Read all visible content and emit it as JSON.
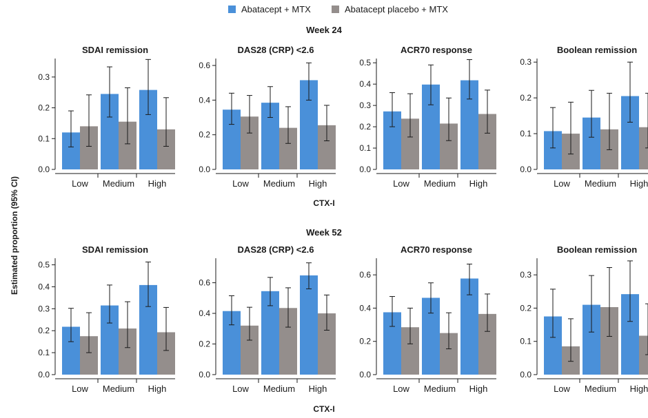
{
  "legend": [
    {
      "label": "Abatacept + MTX",
      "color": "#4a90d9"
    },
    {
      "label": "Abatacept placebo + MTX",
      "color": "#948e8c"
    }
  ],
  "y_axis_label": "Estimated proportion (95% CI)",
  "x_axis_label": "CTX-I",
  "weeks": [
    "Week 24",
    "Week 52"
  ],
  "colors": {
    "abatacept": "#4a90d9",
    "placebo": "#948e8c",
    "axis": "#1a1a1a"
  },
  "chart_data": [
    {
      "type": "bar",
      "panel": "Week 24",
      "title": "SDAI remission",
      "categories": [
        "Low",
        "Medium",
        "High"
      ],
      "ylim": [
        0,
        0.36
      ],
      "yticks": [
        0.0,
        0.1,
        0.2,
        0.3
      ],
      "tick_decimals": 1,
      "series": [
        {
          "name": "Abatacept + MTX",
          "values": [
            0.12,
            0.245,
            0.258
          ],
          "ci_low": [
            0.073,
            0.17,
            0.178
          ],
          "ci_high": [
            0.19,
            0.333,
            0.357
          ]
        },
        {
          "name": "Abatacept placebo + MTX",
          "values": [
            0.14,
            0.155,
            0.13
          ],
          "ci_low": [
            0.075,
            0.083,
            0.075
          ],
          "ci_high": [
            0.242,
            0.265,
            0.233
          ]
        }
      ]
    },
    {
      "type": "bar",
      "panel": "Week 24",
      "title": "DAS28 (CRP) <2.6",
      "categories": [
        "Low",
        "Medium",
        "High"
      ],
      "ylim": [
        0,
        0.64
      ],
      "yticks": [
        0.0,
        0.2,
        0.4,
        0.6
      ],
      "tick_decimals": 1,
      "series": [
        {
          "name": "Abatacept + MTX",
          "values": [
            0.345,
            0.385,
            0.515
          ],
          "ci_low": [
            0.26,
            0.3,
            0.4
          ],
          "ci_high": [
            0.44,
            0.478,
            0.615
          ]
        },
        {
          "name": "Abatacept placebo + MTX",
          "values": [
            0.305,
            0.24,
            0.255
          ],
          "ci_low": [
            0.21,
            0.15,
            0.165
          ],
          "ci_high": [
            0.427,
            0.362,
            0.37
          ]
        }
      ]
    },
    {
      "type": "bar",
      "panel": "Week 24",
      "title": "ACR70 response",
      "categories": [
        "Low",
        "Medium",
        "High"
      ],
      "ylim": [
        0,
        0.52
      ],
      "yticks": [
        0.0,
        0.1,
        0.2,
        0.3,
        0.4,
        0.5
      ],
      "tick_decimals": 1,
      "series": [
        {
          "name": "Abatacept + MTX",
          "values": [
            0.272,
            0.398,
            0.418
          ],
          "ci_low": [
            0.2,
            0.303,
            0.33
          ],
          "ci_high": [
            0.36,
            0.49,
            0.515
          ]
        },
        {
          "name": "Abatacept placebo + MTX",
          "values": [
            0.238,
            0.215,
            0.26
          ],
          "ci_low": [
            0.152,
            0.135,
            0.17
          ],
          "ci_high": [
            0.355,
            0.335,
            0.372
          ]
        }
      ]
    },
    {
      "type": "bar",
      "panel": "Week 24",
      "title": "Boolean remission",
      "categories": [
        "Low",
        "Medium",
        "High"
      ],
      "ylim": [
        0,
        0.31
      ],
      "yticks": [
        0.0,
        0.1,
        0.2,
        0.3
      ],
      "tick_decimals": 1,
      "series": [
        {
          "name": "Abatacept + MTX",
          "values": [
            0.107,
            0.145,
            0.205
          ],
          "ci_low": [
            0.06,
            0.09,
            0.132
          ],
          "ci_high": [
            0.173,
            0.221,
            0.3
          ]
        },
        {
          "name": "Abatacept placebo + MTX",
          "values": [
            0.1,
            0.112,
            0.118
          ],
          "ci_low": [
            0.043,
            0.055,
            0.06
          ],
          "ci_high": [
            0.188,
            0.213,
            0.213
          ]
        }
      ]
    },
    {
      "type": "bar",
      "panel": "Week 52",
      "title": "SDAI remission",
      "categories": [
        "Low",
        "Medium",
        "High"
      ],
      "ylim": [
        0,
        0.53
      ],
      "yticks": [
        0.0,
        0.1,
        0.2,
        0.3,
        0.4,
        0.5
      ],
      "tick_decimals": 1,
      "series": [
        {
          "name": "Abatacept + MTX",
          "values": [
            0.218,
            0.315,
            0.408
          ],
          "ci_low": [
            0.15,
            0.235,
            0.31
          ],
          "ci_high": [
            0.302,
            0.408,
            0.513
          ]
        },
        {
          "name": "Abatacept placebo + MTX",
          "values": [
            0.175,
            0.21,
            0.193
          ],
          "ci_low": [
            0.1,
            0.123,
            0.11
          ],
          "ci_high": [
            0.282,
            0.332,
            0.306
          ]
        }
      ]
    },
    {
      "type": "bar",
      "panel": "Week 52",
      "title": "DAS28 (CRP) <2.6",
      "categories": [
        "Low",
        "Medium",
        "High"
      ],
      "ylim": [
        0,
        0.76
      ],
      "yticks": [
        0.0,
        0.2,
        0.4,
        0.6
      ],
      "tick_decimals": 1,
      "series": [
        {
          "name": "Abatacept + MTX",
          "values": [
            0.415,
            0.545,
            0.648
          ],
          "ci_low": [
            0.325,
            0.45,
            0.56
          ],
          "ci_high": [
            0.515,
            0.635,
            0.73
          ]
        },
        {
          "name": "Abatacept placebo + MTX",
          "values": [
            0.32,
            0.435,
            0.4
          ],
          "ci_low": [
            0.225,
            0.31,
            0.29
          ],
          "ci_high": [
            0.44,
            0.567,
            0.52
          ]
        }
      ]
    },
    {
      "type": "bar",
      "panel": "Week 52",
      "title": "ACR70 response",
      "categories": [
        "Low",
        "Medium",
        "High"
      ],
      "ylim": [
        0,
        0.7
      ],
      "yticks": [
        0.0,
        0.2,
        0.4,
        0.6
      ],
      "tick_decimals": 1,
      "series": [
        {
          "name": "Abatacept + MTX",
          "values": [
            0.375,
            0.462,
            0.578
          ],
          "ci_low": [
            0.29,
            0.37,
            0.48
          ],
          "ci_high": [
            0.47,
            0.552,
            0.665
          ]
        },
        {
          "name": "Abatacept placebo + MTX",
          "values": [
            0.285,
            0.25,
            0.365
          ],
          "ci_low": [
            0.185,
            0.155,
            0.26
          ],
          "ci_high": [
            0.4,
            0.372,
            0.485
          ]
        }
      ]
    },
    {
      "type": "bar",
      "panel": "Week 52",
      "title": "Boolean remission",
      "categories": [
        "Low",
        "Medium",
        "High"
      ],
      "ylim": [
        0,
        0.35
      ],
      "yticks": [
        0.0,
        0.1,
        0.2,
        0.3
      ],
      "tick_decimals": 1,
      "series": [
        {
          "name": "Abatacept + MTX",
          "values": [
            0.175,
            0.21,
            0.242
          ],
          "ci_low": [
            0.112,
            0.128,
            0.16
          ],
          "ci_high": [
            0.257,
            0.298,
            0.342
          ]
        },
        {
          "name": "Abatacept placebo + MTX",
          "values": [
            0.085,
            0.203,
            0.117
          ],
          "ci_low": [
            0.04,
            0.115,
            0.06
          ],
          "ci_high": [
            0.168,
            0.322,
            0.213
          ]
        }
      ]
    }
  ]
}
